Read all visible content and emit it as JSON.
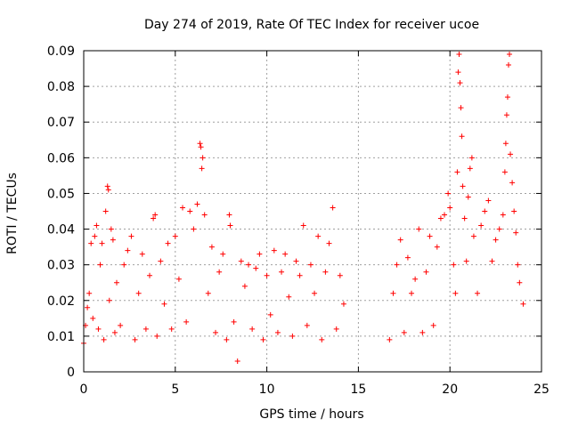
{
  "chart_data": {
    "type": "scatter",
    "title": "Day 274 of 2019, Rate Of TEC Index for receiver ucoe",
    "xlabel": "GPS time / hours",
    "ylabel": "ROTI / TECUs",
    "xlim": [
      0,
      25
    ],
    "ylim": [
      0,
      0.09
    ],
    "xticks": [
      0,
      5,
      10,
      15,
      20,
      25
    ],
    "yticks": [
      0,
      0.01,
      0.02,
      0.03,
      0.04,
      0.05,
      0.06,
      0.07,
      0.08,
      0.09
    ],
    "xtick_labels": [
      "0",
      "5",
      "10",
      "15",
      "20",
      "25"
    ],
    "ytick_labels": [
      "0",
      "0.01",
      "0.02",
      "0.03",
      "0.04",
      "0.05",
      "0.06",
      "0.07",
      "0.08",
      "0.09"
    ],
    "grid": true,
    "marker": "+",
    "color": "#ff0000",
    "data_gap_hours": [
      14.3,
      16.7
    ],
    "series": [
      {
        "name": "ROTI",
        "points": [
          [
            0.0,
            0.008
          ],
          [
            0.1,
            0.013
          ],
          [
            0.2,
            0.018
          ],
          [
            0.3,
            0.022
          ],
          [
            0.4,
            0.036
          ],
          [
            0.5,
            0.015
          ],
          [
            0.6,
            0.038
          ],
          [
            0.7,
            0.041
          ],
          [
            0.8,
            0.012
          ],
          [
            0.9,
            0.03
          ],
          [
            1.0,
            0.036
          ],
          [
            1.1,
            0.009
          ],
          [
            1.2,
            0.045
          ],
          [
            1.3,
            0.052
          ],
          [
            1.35,
            0.051
          ],
          [
            1.4,
            0.02
          ],
          [
            1.5,
            0.04
          ],
          [
            1.6,
            0.037
          ],
          [
            1.7,
            0.011
          ],
          [
            1.8,
            0.025
          ],
          [
            2.0,
            0.013
          ],
          [
            2.2,
            0.03
          ],
          [
            2.4,
            0.034
          ],
          [
            2.6,
            0.038
          ],
          [
            2.8,
            0.009
          ],
          [
            3.0,
            0.022
          ],
          [
            3.2,
            0.033
          ],
          [
            3.4,
            0.012
          ],
          [
            3.6,
            0.027
          ],
          [
            3.8,
            0.043
          ],
          [
            3.9,
            0.044
          ],
          [
            4.0,
            0.01
          ],
          [
            4.2,
            0.031
          ],
          [
            4.4,
            0.019
          ],
          [
            4.6,
            0.036
          ],
          [
            4.8,
            0.012
          ],
          [
            5.0,
            0.038
          ],
          [
            5.2,
            0.026
          ],
          [
            5.4,
            0.046
          ],
          [
            5.6,
            0.014
          ],
          [
            5.8,
            0.045
          ],
          [
            6.0,
            0.04
          ],
          [
            6.2,
            0.047
          ],
          [
            6.35,
            0.064
          ],
          [
            6.4,
            0.063
          ],
          [
            6.45,
            0.057
          ],
          [
            6.5,
            0.06
          ],
          [
            6.6,
            0.044
          ],
          [
            6.8,
            0.022
          ],
          [
            7.0,
            0.035
          ],
          [
            7.2,
            0.011
          ],
          [
            7.4,
            0.028
          ],
          [
            7.6,
            0.033
          ],
          [
            7.8,
            0.009
          ],
          [
            7.95,
            0.044
          ],
          [
            8.0,
            0.041
          ],
          [
            8.2,
            0.014
          ],
          [
            8.4,
            0.003
          ],
          [
            8.6,
            0.031
          ],
          [
            8.8,
            0.024
          ],
          [
            9.0,
            0.03
          ],
          [
            9.2,
            0.012
          ],
          [
            9.4,
            0.029
          ],
          [
            9.6,
            0.033
          ],
          [
            9.8,
            0.009
          ],
          [
            10.0,
            0.027
          ],
          [
            10.2,
            0.016
          ],
          [
            10.4,
            0.034
          ],
          [
            10.6,
            0.011
          ],
          [
            10.8,
            0.028
          ],
          [
            11.0,
            0.033
          ],
          [
            11.2,
            0.021
          ],
          [
            11.4,
            0.01
          ],
          [
            11.6,
            0.031
          ],
          [
            11.8,
            0.027
          ],
          [
            12.0,
            0.041
          ],
          [
            12.2,
            0.013
          ],
          [
            12.4,
            0.03
          ],
          [
            12.6,
            0.022
          ],
          [
            12.8,
            0.038
          ],
          [
            13.0,
            0.009
          ],
          [
            13.2,
            0.028
          ],
          [
            13.4,
            0.036
          ],
          [
            13.6,
            0.046
          ],
          [
            13.8,
            0.012
          ],
          [
            14.0,
            0.027
          ],
          [
            14.2,
            0.019
          ],
          [
            16.7,
            0.009
          ],
          [
            16.9,
            0.022
          ],
          [
            17.1,
            0.03
          ],
          [
            17.3,
            0.037
          ],
          [
            17.5,
            0.011
          ],
          [
            17.7,
            0.032
          ],
          [
            17.9,
            0.022
          ],
          [
            18.1,
            0.026
          ],
          [
            18.3,
            0.04
          ],
          [
            18.5,
            0.011
          ],
          [
            18.7,
            0.028
          ],
          [
            18.9,
            0.038
          ],
          [
            19.1,
            0.013
          ],
          [
            19.3,
            0.035
          ],
          [
            19.5,
            0.043
          ],
          [
            19.7,
            0.044
          ],
          [
            19.9,
            0.05
          ],
          [
            20.0,
            0.046
          ],
          [
            20.2,
            0.03
          ],
          [
            20.3,
            0.022
          ],
          [
            20.4,
            0.056
          ],
          [
            20.45,
            0.084
          ],
          [
            20.5,
            0.089
          ],
          [
            20.55,
            0.081
          ],
          [
            20.6,
            0.074
          ],
          [
            20.65,
            0.066
          ],
          [
            20.7,
            0.052
          ],
          [
            20.8,
            0.043
          ],
          [
            20.9,
            0.031
          ],
          [
            21.0,
            0.049
          ],
          [
            21.1,
            0.057
          ],
          [
            21.2,
            0.06
          ],
          [
            21.3,
            0.038
          ],
          [
            21.5,
            0.022
          ],
          [
            21.7,
            0.041
          ],
          [
            21.9,
            0.045
          ],
          [
            22.1,
            0.048
          ],
          [
            22.3,
            0.031
          ],
          [
            22.5,
            0.037
          ],
          [
            22.7,
            0.04
          ],
          [
            22.9,
            0.044
          ],
          [
            23.0,
            0.056
          ],
          [
            23.05,
            0.064
          ],
          [
            23.1,
            0.072
          ],
          [
            23.15,
            0.077
          ],
          [
            23.2,
            0.086
          ],
          [
            23.25,
            0.089
          ],
          [
            23.3,
            0.061
          ],
          [
            23.4,
            0.053
          ],
          [
            23.5,
            0.045
          ],
          [
            23.6,
            0.039
          ],
          [
            23.7,
            0.03
          ],
          [
            23.8,
            0.025
          ],
          [
            24.0,
            0.019
          ]
        ]
      }
    ]
  }
}
